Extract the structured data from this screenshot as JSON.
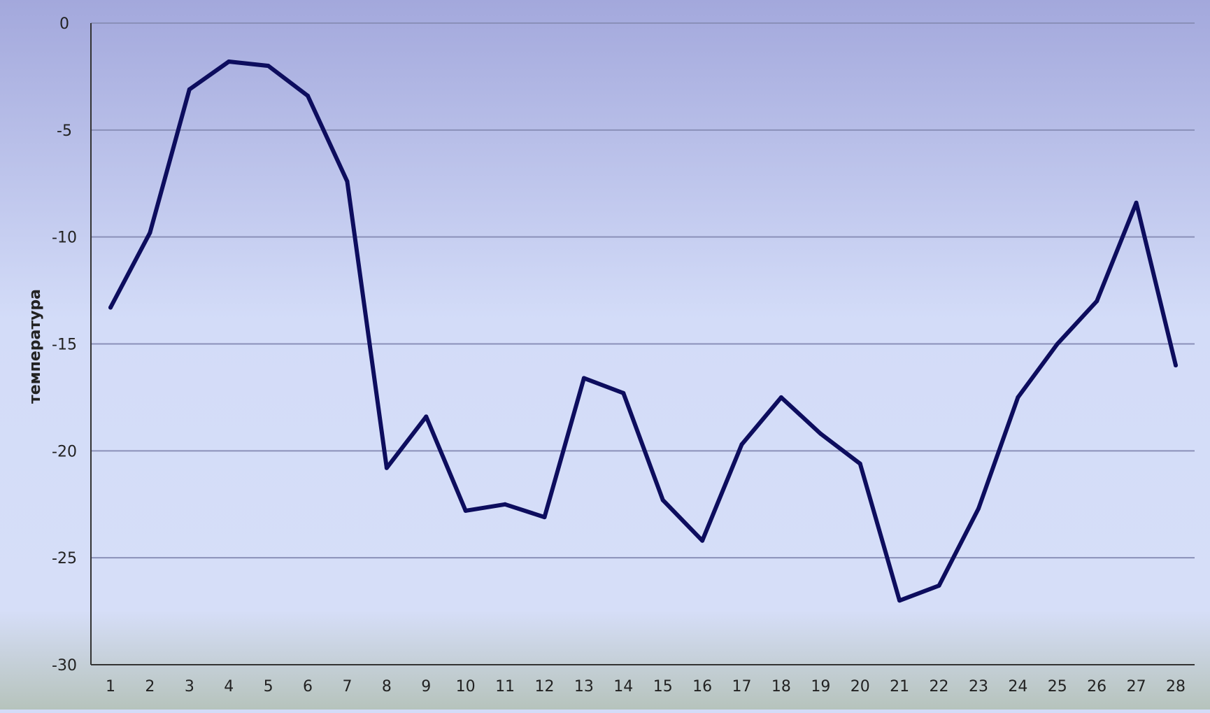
{
  "chart_data": {
    "type": "line",
    "title": "",
    "xlabel": "",
    "ylabel": "температура",
    "categories": [
      "1",
      "2",
      "3",
      "4",
      "5",
      "6",
      "7",
      "8",
      "9",
      "10",
      "11",
      "12",
      "13",
      "14",
      "15",
      "16",
      "17",
      "18",
      "19",
      "20",
      "21",
      "22",
      "23",
      "24",
      "25",
      "26",
      "27",
      "28"
    ],
    "series": [
      {
        "values": [
          -13.3,
          -9.8,
          -3.1,
          -1.8,
          -2.0,
          -3.4,
          -7.4,
          -20.8,
          -18.4,
          -22.8,
          -22.5,
          -23.1,
          -16.6,
          -17.3,
          -22.3,
          -24.2,
          -19.7,
          -17.5,
          -19.2,
          -20.6,
          -27.0,
          -26.3,
          -22.7,
          -17.5,
          -15.0,
          -13.0,
          -8.4,
          -16.0
        ],
        "color": "#0d0d5e"
      }
    ],
    "ylim": [
      -30,
      0
    ],
    "yticks": [
      "0",
      "-5",
      "-10",
      "-15",
      "-20",
      "-25",
      "-30"
    ],
    "grid": true,
    "legend": "none",
    "colors": {
      "line": "#0d0d5e",
      "gridline": "#8a90b8",
      "axis": "#333333",
      "background_top": "#a3a8dc",
      "background_mid": "#d3dcf8",
      "background_bottom": "#b9c6bf"
    }
  }
}
